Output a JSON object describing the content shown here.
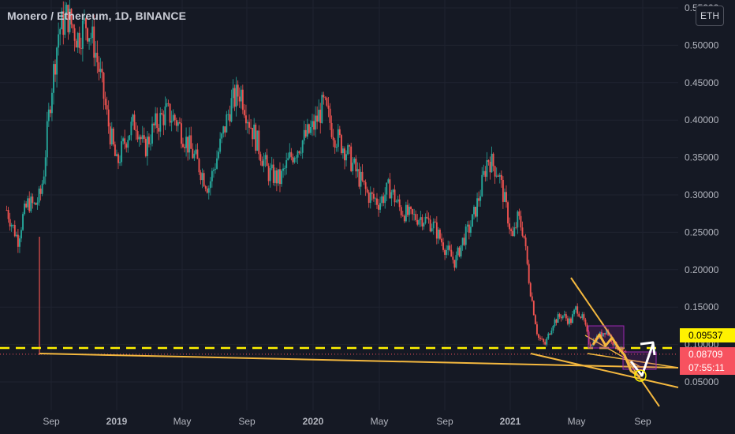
{
  "symbol_title": "Monero / Ethereum, 1D, BINANCE",
  "currency_badge": "ETH",
  "price_tags": {
    "level": "0.09537",
    "last": "0.08709",
    "countdown": "07:55:11"
  },
  "colors": {
    "background": "#151924",
    "grid": "#1f2330",
    "up": "#26a69a",
    "down": "#ef5350",
    "trendline": "#f4b83f",
    "level_line": "#fff200",
    "last_price": "#f7525f",
    "box": "#9c27b0",
    "arrow": "#ffffff"
  },
  "chart_data": {
    "type": "line",
    "title": "Monero / Ethereum, 1D, BINANCE",
    "xlabel": "",
    "ylabel": "",
    "x_ticks": [
      "Sep",
      "2019",
      "May",
      "Sep",
      "2020",
      "May",
      "Sep",
      "2021",
      "May",
      "Sep"
    ],
    "y_ticks": [
      "0.55000",
      "0.50000",
      "0.45000",
      "0.40000",
      "0.35000",
      "0.30000",
      "0.25000",
      "0.20000",
      "0.15000",
      "0.10000",
      "0.05000"
    ],
    "ylim": [
      0.0,
      0.55
    ],
    "grid": true,
    "series": [
      {
        "x": [
          "2018-06-10",
          "2018-06-20",
          "2018-07-01",
          "2018-07-10",
          "2018-07-20",
          "2018-08-01",
          "2018-08-12",
          "2018-08-18",
          "2018-08-24",
          "2018-09-01",
          "2018-09-15",
          "2018-10-01",
          "2018-10-20",
          "2018-11-05",
          "2018-11-20",
          "2018-12-01",
          "2018-12-15",
          "2019-01-01",
          "2019-01-20",
          "2019-02-05",
          "2019-02-20",
          "2019-03-10",
          "2019-04-01",
          "2019-04-20",
          "2019-05-10",
          "2019-06-01",
          "2019-06-20",
          "2019-07-10",
          "2019-08-01",
          "2019-08-20",
          "2019-09-05",
          "2019-09-20",
          "2019-10-10",
          "2019-11-01",
          "2019-11-20",
          "2019-12-10",
          "2020-01-01",
          "2020-01-20",
          "2020-02-10",
          "2020-03-01",
          "2020-03-20",
          "2020-04-10",
          "2020-05-01",
          "2020-05-20",
          "2020-06-10",
          "2020-07-01",
          "2020-07-20",
          "2020-08-10",
          "2020-09-01",
          "2020-09-20",
          "2020-10-05",
          "2020-10-20",
          "2020-11-05",
          "2020-11-20",
          "2020-12-10",
          "2020-12-25",
          "2021-01-05",
          "2021-01-15",
          "2021-01-25",
          "2021-02-05",
          "2021-02-20",
          "2021-03-05",
          "2021-03-20",
          "2021-04-05",
          "2021-04-20",
          "2021-05-01",
          "2021-05-15",
          "2021-05-25",
          "2021-06-10",
          "2021-06-25",
          "2021-07-10",
          "2021-07-25",
          "2021-08-01"
        ],
        "values": [
          0.28,
          0.26,
          0.24,
          0.27,
          0.29,
          0.285,
          0.3,
          0.33,
          0.38,
          0.44,
          0.52,
          0.54,
          0.51,
          0.53,
          0.5,
          0.46,
          0.4,
          0.34,
          0.38,
          0.4,
          0.36,
          0.39,
          0.41,
          0.4,
          0.37,
          0.34,
          0.31,
          0.36,
          0.42,
          0.44,
          0.4,
          0.37,
          0.33,
          0.32,
          0.35,
          0.37,
          0.39,
          0.42,
          0.38,
          0.36,
          0.33,
          0.3,
          0.29,
          0.31,
          0.28,
          0.27,
          0.27,
          0.26,
          0.23,
          0.21,
          0.24,
          0.26,
          0.3,
          0.35,
          0.33,
          0.28,
          0.24,
          0.27,
          0.25,
          0.18,
          0.11,
          0.1,
          0.13,
          0.14,
          0.13,
          0.15,
          0.13,
          0.1,
          0.11,
          0.12,
          0.1,
          0.09,
          0.087
        ]
      }
    ]
  }
}
